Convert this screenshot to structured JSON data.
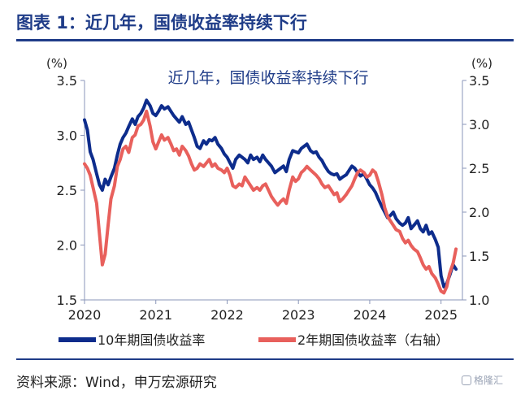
{
  "page": {
    "figure_title": "图表 1：近几年，国债收益率持续下行",
    "source": "资料来源：Wind，申万宏源研究",
    "watermark": "格隆汇",
    "watermark_icon": "logo-mark-icon"
  },
  "chart_data": {
    "type": "line",
    "title": "近几年，国债收益率持续下行",
    "y_left": {
      "unit": "(%)",
      "range": [
        1.5,
        3.5
      ],
      "ticks": [
        "1.5",
        "2.0",
        "2.5",
        "3.0",
        "3.5"
      ]
    },
    "y_right": {
      "unit": "(%)",
      "range": [
        1.0,
        3.5
      ],
      "ticks": [
        "1.0",
        "1.5",
        "2.0",
        "2.5",
        "3.0",
        "3.5"
      ]
    },
    "x_axis": {
      "range": [
        2020.0,
        2025.3
      ],
      "ticks": [
        "2020",
        "2021",
        "2022",
        "2023",
        "2024",
        "2025"
      ]
    },
    "grid": false,
    "legend": {
      "position": "bottom"
    },
    "series": [
      {
        "name": "10年期国债收益率",
        "axis": "left",
        "color": "#0d2c8c",
        "x": [
          2020.0,
          2020.04,
          2020.08,
          2020.12,
          2020.17,
          2020.21,
          2020.25,
          2020.29,
          2020.33,
          2020.37,
          2020.42,
          2020.46,
          2020.5,
          2020.54,
          2020.58,
          2020.62,
          2020.67,
          2020.71,
          2020.75,
          2020.79,
          2020.83,
          2020.87,
          2020.92,
          2020.96,
          2021.0,
          2021.04,
          2021.08,
          2021.12,
          2021.17,
          2021.21,
          2021.25,
          2021.29,
          2021.33,
          2021.37,
          2021.42,
          2021.46,
          2021.5,
          2021.54,
          2021.58,
          2021.62,
          2021.67,
          2021.71,
          2021.75,
          2021.79,
          2021.83,
          2021.87,
          2021.92,
          2021.96,
          2022.0,
          2022.04,
          2022.08,
          2022.12,
          2022.17,
          2022.21,
          2022.25,
          2022.29,
          2022.33,
          2022.37,
          2022.42,
          2022.46,
          2022.5,
          2022.54,
          2022.58,
          2022.62,
          2022.67,
          2022.71,
          2022.75,
          2022.79,
          2022.83,
          2022.87,
          2022.92,
          2022.96,
          2023.0,
          2023.04,
          2023.08,
          2023.12,
          2023.17,
          2023.21,
          2023.25,
          2023.29,
          2023.33,
          2023.37,
          2023.42,
          2023.46,
          2023.5,
          2023.54,
          2023.58,
          2023.62,
          2023.67,
          2023.71,
          2023.75,
          2023.79,
          2023.83,
          2023.87,
          2023.92,
          2023.96,
          2024.0,
          2024.04,
          2024.08,
          2024.12,
          2024.17,
          2024.21,
          2024.25,
          2024.29,
          2024.33,
          2024.37,
          2024.42,
          2024.46,
          2024.5,
          2024.54,
          2024.58,
          2024.62,
          2024.67,
          2024.71,
          2024.75,
          2024.79,
          2024.83,
          2024.87,
          2024.92,
          2024.96,
          2025.0,
          2025.04,
          2025.08,
          2025.12,
          2025.17,
          2025.21
        ],
        "values": [
          3.14,
          3.05,
          2.85,
          2.78,
          2.65,
          2.55,
          2.5,
          2.6,
          2.55,
          2.62,
          2.7,
          2.82,
          2.92,
          2.98,
          3.02,
          3.08,
          3.15,
          3.1,
          3.17,
          3.2,
          3.25,
          3.32,
          3.27,
          3.2,
          3.18,
          3.22,
          3.27,
          3.24,
          3.26,
          3.22,
          3.18,
          3.15,
          3.12,
          3.17,
          3.1,
          3.12,
          3.05,
          2.98,
          2.9,
          2.88,
          2.95,
          2.92,
          2.96,
          2.95,
          2.98,
          2.92,
          2.88,
          2.83,
          2.8,
          2.75,
          2.7,
          2.78,
          2.82,
          2.8,
          2.78,
          2.75,
          2.82,
          2.78,
          2.8,
          2.76,
          2.82,
          2.78,
          2.75,
          2.72,
          2.66,
          2.68,
          2.7,
          2.72,
          2.67,
          2.78,
          2.86,
          2.85,
          2.84,
          2.88,
          2.9,
          2.92,
          2.86,
          2.84,
          2.85,
          2.8,
          2.77,
          2.72,
          2.67,
          2.65,
          2.64,
          2.65,
          2.6,
          2.62,
          2.64,
          2.68,
          2.72,
          2.7,
          2.66,
          2.63,
          2.65,
          2.6,
          2.55,
          2.52,
          2.48,
          2.42,
          2.35,
          2.3,
          2.25,
          2.27,
          2.3,
          2.24,
          2.2,
          2.18,
          2.2,
          2.25,
          2.15,
          2.18,
          2.22,
          2.15,
          2.12,
          2.18,
          2.1,
          2.12,
          2.05,
          1.98,
          1.72,
          1.62,
          1.65,
          1.72,
          1.82,
          1.78
        ]
      },
      {
        "name": "2年期国债收益率（右轴）",
        "axis": "right",
        "color": "#e8605c",
        "x": [
          2020.0,
          2020.04,
          2020.08,
          2020.12,
          2020.17,
          2020.21,
          2020.25,
          2020.29,
          2020.33,
          2020.37,
          2020.42,
          2020.46,
          2020.5,
          2020.54,
          2020.58,
          2020.62,
          2020.67,
          2020.71,
          2020.75,
          2020.79,
          2020.83,
          2020.87,
          2020.92,
          2020.96,
          2021.0,
          2021.04,
          2021.08,
          2021.12,
          2021.17,
          2021.21,
          2021.25,
          2021.29,
          2021.33,
          2021.37,
          2021.42,
          2021.46,
          2021.5,
          2021.54,
          2021.58,
          2021.62,
          2021.67,
          2021.71,
          2021.75,
          2021.79,
          2021.83,
          2021.87,
          2021.92,
          2021.96,
          2022.0,
          2022.04,
          2022.08,
          2022.12,
          2022.17,
          2022.21,
          2022.25,
          2022.29,
          2022.33,
          2022.37,
          2022.42,
          2022.46,
          2022.5,
          2022.54,
          2022.58,
          2022.62,
          2022.67,
          2022.71,
          2022.75,
          2022.79,
          2022.83,
          2022.87,
          2022.92,
          2022.96,
          2023.0,
          2023.04,
          2023.08,
          2023.12,
          2023.17,
          2023.21,
          2023.25,
          2023.29,
          2023.33,
          2023.37,
          2023.42,
          2023.46,
          2023.5,
          2023.54,
          2023.58,
          2023.62,
          2023.67,
          2023.71,
          2023.75,
          2023.79,
          2023.83,
          2023.87,
          2023.92,
          2023.96,
          2024.0,
          2024.04,
          2024.08,
          2024.12,
          2024.17,
          2024.21,
          2024.25,
          2024.29,
          2024.33,
          2024.37,
          2024.42,
          2024.46,
          2024.5,
          2024.54,
          2024.58,
          2024.62,
          2024.67,
          2024.71,
          2024.75,
          2024.79,
          2024.83,
          2024.87,
          2024.92,
          2024.96,
          2025.0,
          2025.04,
          2025.08,
          2025.12,
          2025.17,
          2025.21
        ],
        "values": [
          2.55,
          2.5,
          2.42,
          2.28,
          2.1,
          1.75,
          1.4,
          1.52,
          1.85,
          2.15,
          2.3,
          2.52,
          2.6,
          2.72,
          2.75,
          2.68,
          2.85,
          2.88,
          2.98,
          3.0,
          3.05,
          3.15,
          2.98,
          2.8,
          2.72,
          2.8,
          2.88,
          2.82,
          2.85,
          2.78,
          2.7,
          2.72,
          2.65,
          2.75,
          2.7,
          2.64,
          2.55,
          2.48,
          2.5,
          2.55,
          2.52,
          2.56,
          2.6,
          2.52,
          2.55,
          2.5,
          2.48,
          2.45,
          2.5,
          2.42,
          2.3,
          2.28,
          2.32,
          2.3,
          2.4,
          2.35,
          2.3,
          2.25,
          2.28,
          2.25,
          2.3,
          2.32,
          2.25,
          2.18,
          2.12,
          2.08,
          2.12,
          2.15,
          2.1,
          2.25,
          2.4,
          2.35,
          2.38,
          2.45,
          2.48,
          2.52,
          2.48,
          2.45,
          2.42,
          2.38,
          2.32,
          2.28,
          2.3,
          2.25,
          2.2,
          2.22,
          2.12,
          2.15,
          2.2,
          2.25,
          2.3,
          2.38,
          2.45,
          2.48,
          2.45,
          2.4,
          2.42,
          2.48,
          2.45,
          2.35,
          2.2,
          2.05,
          1.95,
          1.9,
          1.85,
          1.8,
          1.78,
          1.7,
          1.65,
          1.68,
          1.62,
          1.58,
          1.55,
          1.48,
          1.4,
          1.35,
          1.38,
          1.3,
          1.25,
          1.18,
          1.1,
          1.08,
          1.15,
          1.3,
          1.42,
          1.58
        ]
      }
    ]
  }
}
